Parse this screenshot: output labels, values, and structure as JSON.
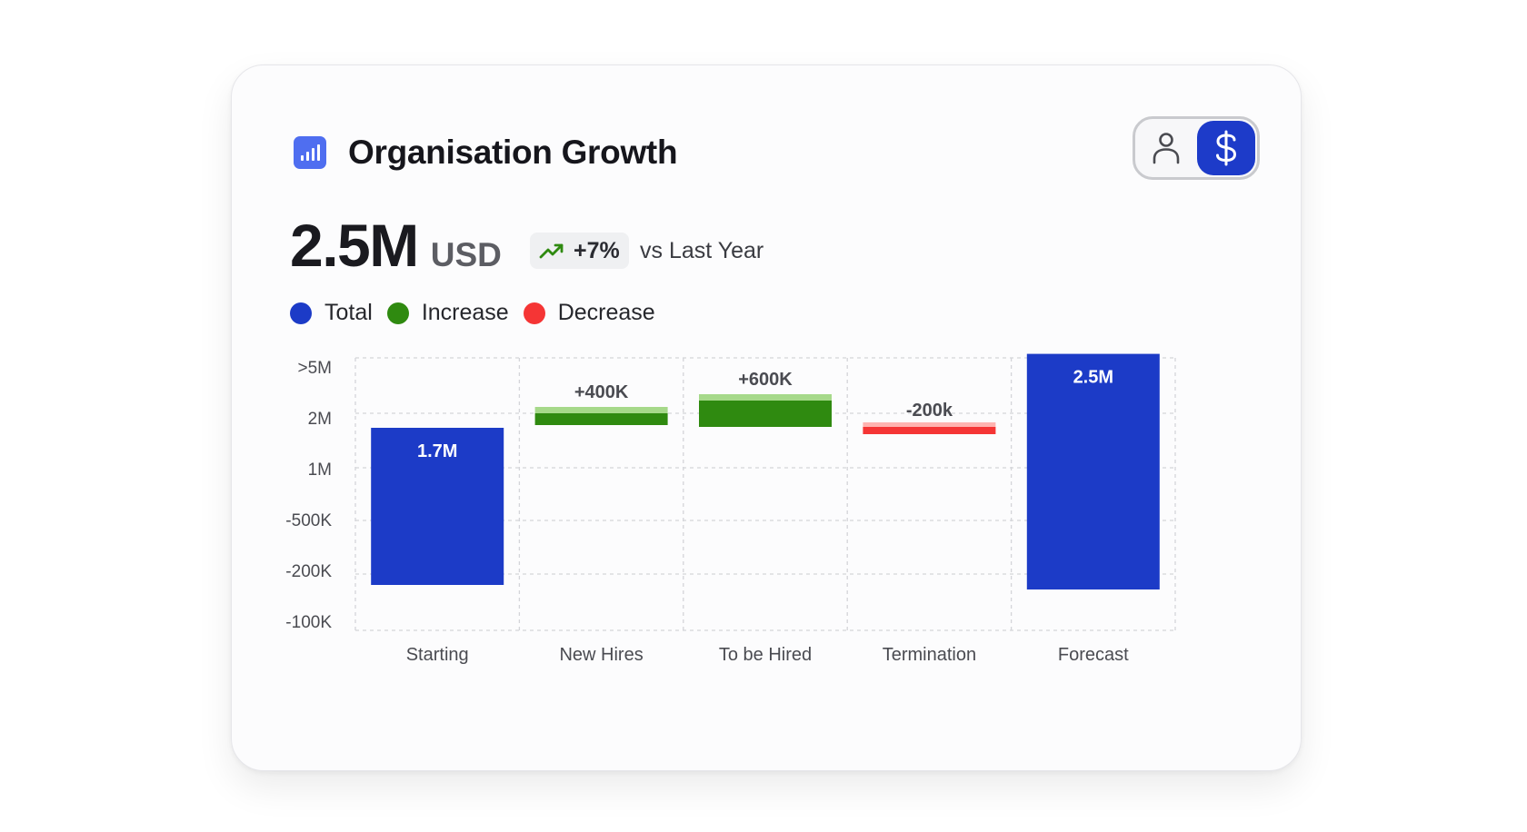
{
  "card": {
    "title": "Organisation Growth",
    "title_icon": "bar-chart-icon",
    "toggle": {
      "options": [
        {
          "icon": "user-icon",
          "active": false
        },
        {
          "icon": "dollar-icon",
          "active": true
        }
      ]
    }
  },
  "summary": {
    "value": "2.5M",
    "unit": "USD",
    "change": "+7%",
    "change_icon": "trending-up-icon",
    "comparison": "vs Last Year"
  },
  "legend": [
    {
      "label": "Total",
      "color": "#1c3bc7"
    },
    {
      "label": "Increase",
      "color": "#2f8a10"
    },
    {
      "label": "Decrease",
      "color": "#f53535"
    }
  ],
  "chart_data": {
    "type": "bar",
    "subtype": "waterfall",
    "categories": [
      "Starting",
      "New Hires",
      "To be Hired",
      "Termination",
      "Forecast"
    ],
    "series": [
      {
        "name": "Total",
        "values": [
          1700000,
          null,
          null,
          null,
          2500000
        ]
      },
      {
        "name": "Increase",
        "values": [
          null,
          400000,
          600000,
          null,
          null
        ]
      },
      {
        "name": "Decrease",
        "values": [
          null,
          null,
          null,
          -200000,
          null
        ]
      }
    ],
    "data_labels": [
      "1.7M",
      "+400K",
      "+600K",
      "-200k",
      "2.5M"
    ],
    "ytick_labels": [
      ">5M",
      "2M",
      "1M",
      "-500K",
      "-200K",
      "-100K"
    ],
    "grid": true,
    "colors": {
      "total": "#1c3bc7",
      "increase": "#2f8a10",
      "increase_light": "#a6d98a",
      "decrease": "#f53535",
      "decrease_light": "#ffb3b0"
    }
  }
}
